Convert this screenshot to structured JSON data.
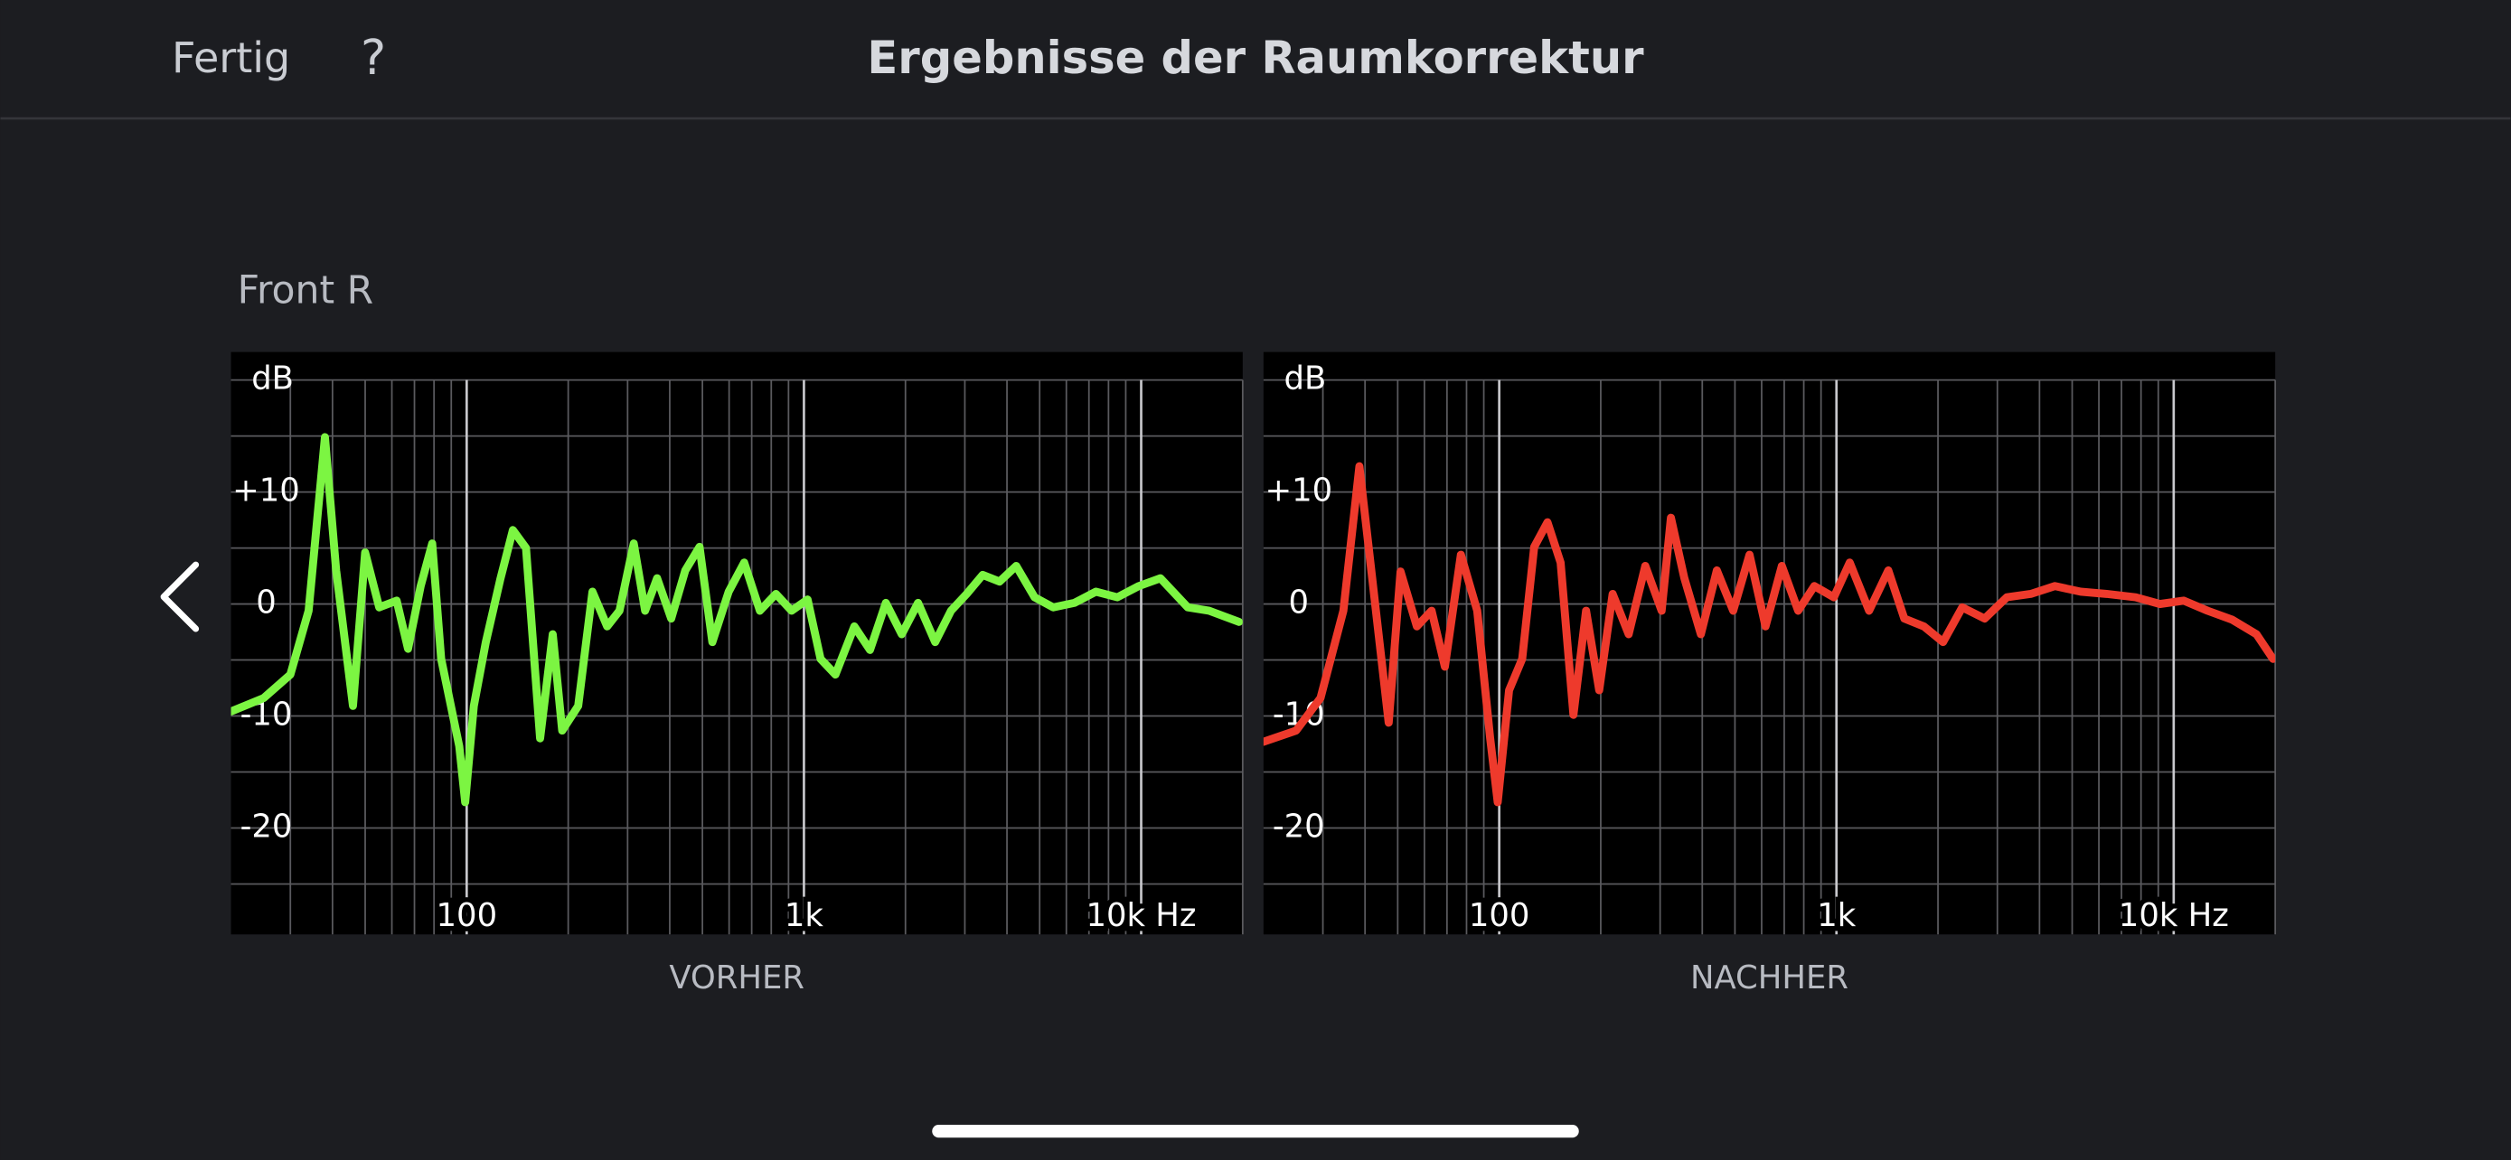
{
  "header": {
    "done": "Fertig",
    "help": "?",
    "title": "Ergebnisse der Raumkorrektur"
  },
  "speaker": "Front R",
  "chart_data": [
    {
      "type": "line",
      "caption": "VORHER",
      "ylabel": "dB",
      "color": "#7cf542",
      "xscale": "log",
      "xlim": [
        20,
        20000
      ],
      "xticks": [
        100,
        {
          "value": 1000,
          "label": "1k"
        },
        {
          "value": 10000,
          "label": "10k Hz"
        }
      ],
      "xminor": [
        30,
        40,
        50,
        60,
        70,
        80,
        90,
        200,
        300,
        400,
        500,
        600,
        700,
        800,
        900,
        2000,
        3000,
        4000,
        5000,
        6000,
        7000,
        8000,
        9000,
        20000
      ],
      "ylim": [
        -29.5,
        22.5
      ],
      "yticks": [
        {
          "value": 10,
          "label": "+10"
        },
        0,
        -10,
        -20
      ],
      "yminor": [
        20,
        15,
        5,
        -5,
        -15,
        -25
      ],
      "grid": true,
      "x": [
        20,
        25,
        30,
        34,
        38,
        41,
        46,
        50,
        55,
        62,
        67,
        73,
        79,
        84,
        95,
        99,
        105,
        114,
        126,
        137,
        150,
        165,
        180,
        192,
        214,
        236,
        261,
        284,
        313,
        338,
        367,
        404,
        445,
        490,
        535,
        598,
        665,
        740,
        826,
        919,
        1025,
        1120,
        1240,
        1410,
        1570,
        1750,
        1950,
        2180,
        2450,
        2730,
        3040,
        3390,
        3800,
        4260,
        4830,
        5480,
        6340,
        7340,
        8500,
        9840,
        11400,
        13750,
        15900,
        19500
      ],
      "values": [
        -9.6,
        -8.4,
        -6.3,
        -0.6,
        14.9,
        3,
        -9.1,
        4.6,
        -0.3,
        0.3,
        -4,
        1.6,
        5.4,
        -4.9,
        -12.7,
        -17.7,
        -9.1,
        -3.4,
        2.3,
        6.6,
        5,
        -12,
        -2.7,
        -11.3,
        -9.1,
        1.1,
        -2,
        -0.6,
        5.4,
        -0.6,
        2.3,
        -1.3,
        3,
        5.1,
        -3.4,
        1.1,
        3.7,
        -0.6,
        0.9,
        -0.6,
        0.4,
        -4.9,
        -6.3,
        -2,
        -4.1,
        0.1,
        -2.7,
        0.1,
        -3.4,
        -0.6,
        0.9,
        2.6,
        2,
        3.4,
        0.6,
        -0.3,
        0.1,
        1.1,
        0.6,
        1.6,
        2.3,
        -0.3,
        -0.6,
        -1.6
      ]
    },
    {
      "type": "line",
      "caption": "NACHHER",
      "ylabel": "dB",
      "color": "#ee3a2c",
      "xscale": "log",
      "xlim": [
        20,
        20000
      ],
      "xticks": [
        100,
        {
          "value": 1000,
          "label": "1k"
        },
        {
          "value": 10000,
          "label": "10k Hz"
        }
      ],
      "xminor": [
        30,
        40,
        50,
        60,
        70,
        80,
        90,
        200,
        300,
        400,
        500,
        600,
        700,
        800,
        900,
        2000,
        3000,
        4000,
        5000,
        6000,
        7000,
        8000,
        9000,
        20000
      ],
      "ylim": [
        -29.5,
        22.5
      ],
      "yticks": [
        {
          "value": 10,
          "label": "+10"
        },
        0,
        -10,
        -20
      ],
      "yminor": [
        20,
        15,
        5,
        -5,
        -15,
        -25
      ],
      "grid": true,
      "x": [
        20,
        25,
        29.5,
        34.5,
        38.5,
        42,
        47,
        51,
        57,
        63,
        69,
        77,
        86,
        94,
        99,
        107,
        117,
        127,
        139,
        152,
        166,
        181,
        198,
        217,
        242,
        271,
        303,
        323,
        354,
        396,
        442,
        494,
        552,
        616,
        689,
        770,
        860,
        982,
        1095,
        1250,
        1425,
        1590,
        1815,
        2070,
        2360,
        2750,
        3200,
        3770,
        4440,
        5300,
        6330,
        7710,
        9100,
        10700,
        12600,
        14900,
        17600,
        19700
      ],
      "values": [
        -12.3,
        -11.3,
        -8.4,
        -0.6,
        12.3,
        2.3,
        -10.6,
        2.9,
        -2,
        -0.6,
        -5.6,
        4.4,
        -0.6,
        -12,
        -17.7,
        -7.7,
        -4.9,
        5.1,
        7.3,
        3.7,
        -9.9,
        -0.6,
        -7.7,
        0.9,
        -2.7,
        3.4,
        -0.6,
        7.7,
        2.3,
        -2.7,
        3,
        -0.6,
        4.4,
        -2,
        3.4,
        -0.6,
        1.6,
        0.6,
        3.7,
        -0.6,
        3,
        -1.3,
        -2,
        -3.4,
        -0.3,
        -1.3,
        0.6,
        0.9,
        1.6,
        1.1,
        0.9,
        0.6,
        0,
        0.3,
        -0.6,
        -1.4,
        -2.7,
        -4.9
      ]
    }
  ]
}
